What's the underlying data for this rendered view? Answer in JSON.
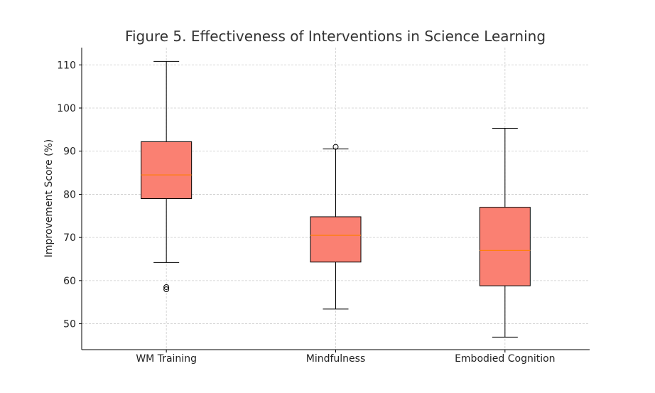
{
  "chart_data": {
    "type": "boxplot",
    "title": "Figure 5. Effectiveness of Interventions in Science Learning",
    "xlabel": "",
    "ylabel": "Improvement Score (%)",
    "ylim": [
      44,
      114
    ],
    "yticks": [
      50,
      60,
      70,
      80,
      90,
      100,
      110
    ],
    "grid": true,
    "categories": [
      "WM Training",
      "Mindfulness",
      "Embodied Cognition"
    ],
    "boxes": [
      {
        "name": "WM Training",
        "whisker_low": 64.2,
        "q1": 79.0,
        "median": 84.5,
        "q3": 92.2,
        "whisker_high": 110.8,
        "outliers": [
          58.0,
          58.5
        ]
      },
      {
        "name": "Mindfulness",
        "whisker_low": 53.4,
        "q1": 64.3,
        "median": 70.5,
        "q3": 74.8,
        "whisker_high": 90.5,
        "outliers": [
          91.0
        ]
      },
      {
        "name": "Embodied Cognition",
        "whisker_low": 46.9,
        "q1": 58.8,
        "median": 67.0,
        "q3": 77.0,
        "whisker_high": 95.3,
        "outliers": []
      }
    ],
    "colors": {
      "box_fill": "#fa8072",
      "median": "#ff7f0e",
      "edge": "#000000",
      "grid": "#cccccc"
    }
  }
}
